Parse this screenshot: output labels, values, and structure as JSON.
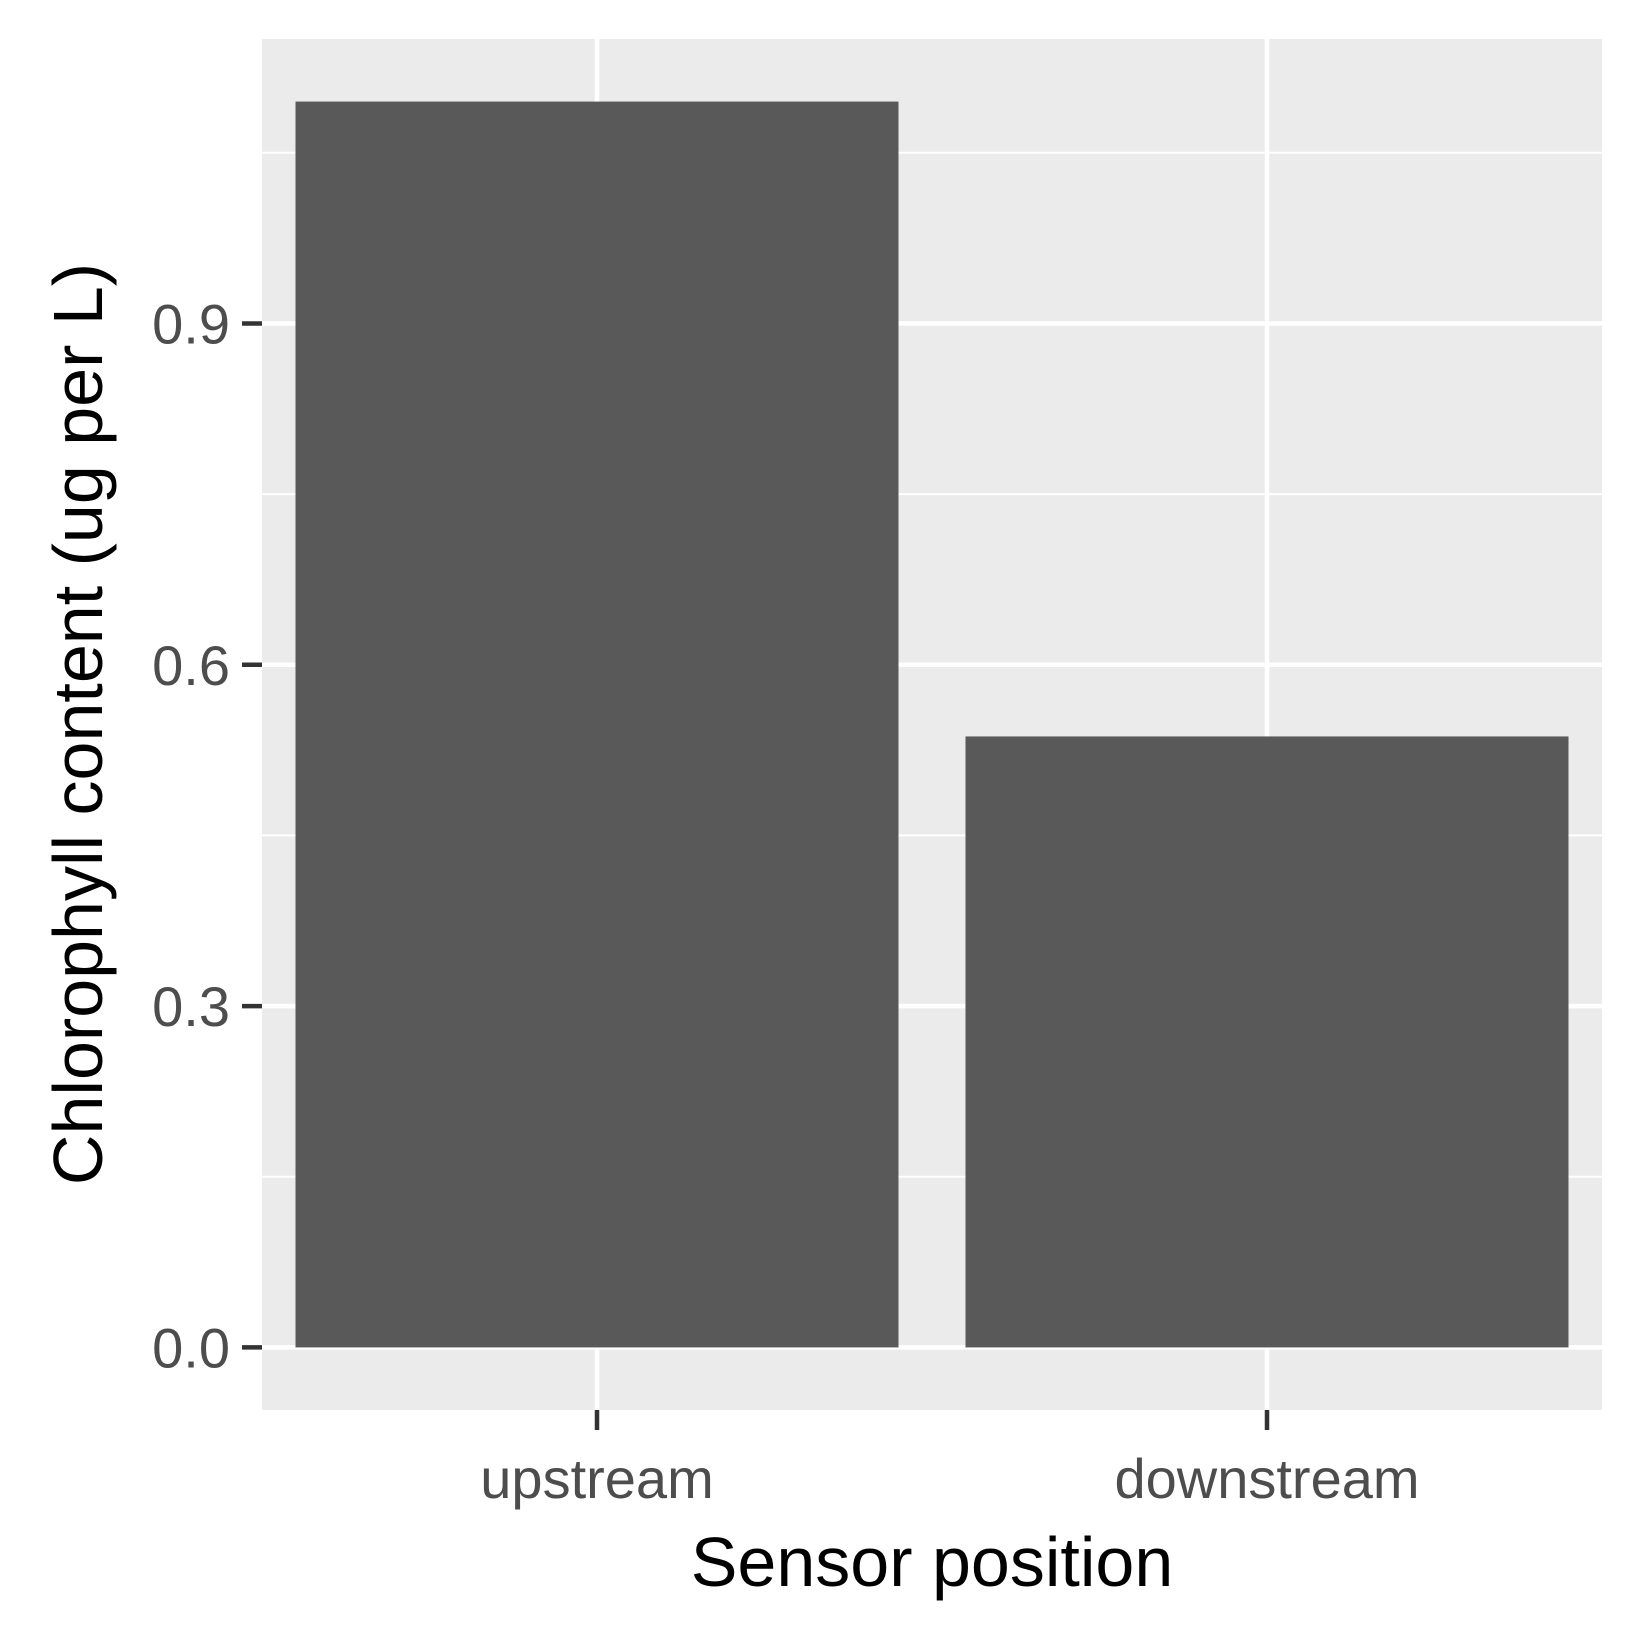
{
  "chart_data": {
    "type": "bar",
    "categories": [
      "upstream",
      "downstream"
    ],
    "values": [
      1.095,
      0.537
    ],
    "title": "",
    "xlabel": "Sensor position",
    "ylabel": "Chlorophyll content (ug per L)",
    "ylim": [
      -0.055,
      1.15
    ],
    "yticks": [
      0.0,
      0.3,
      0.6,
      0.9
    ],
    "ytick_labels": [
      "0.0",
      "0.3",
      "0.6",
      "0.9"
    ],
    "grid": true,
    "legend": "none",
    "colors": {
      "bar": "#595959",
      "panel": "#ebebeb",
      "grid": "#ffffff",
      "tick_text": "#4d4d4d",
      "axis_ticks": "#333333",
      "axis_title": "#000000"
    }
  }
}
